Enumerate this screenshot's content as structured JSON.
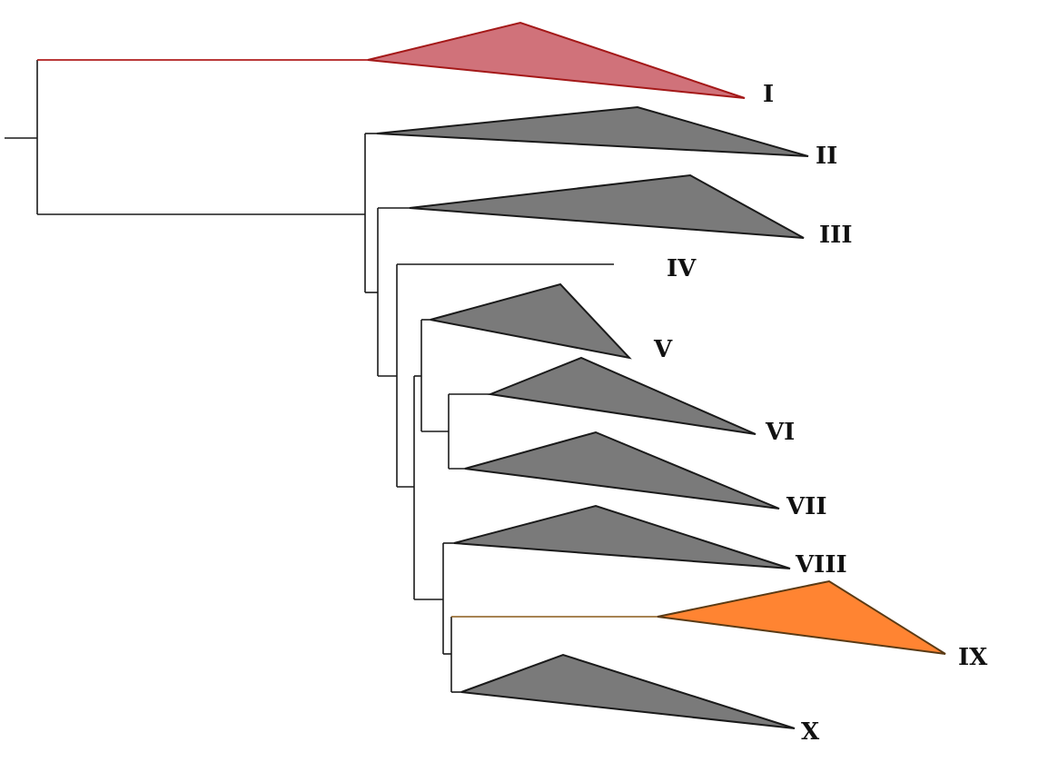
{
  "tree": {
    "clades": [
      {
        "id": "I",
        "label": "I",
        "color": "#d0727a",
        "highlight": "red"
      },
      {
        "id": "II",
        "label": "II",
        "color": "#7a7a7a"
      },
      {
        "id": "III",
        "label": "III",
        "color": "#7a7a7a"
      },
      {
        "id": "IV",
        "label": "IV",
        "color": null,
        "leaf": true
      },
      {
        "id": "V",
        "label": "V",
        "color": "#7a7a7a"
      },
      {
        "id": "VI",
        "label": "VI",
        "color": "#7a7a7a"
      },
      {
        "id": "VII",
        "label": "VII",
        "color": "#7a7a7a"
      },
      {
        "id": "VIII",
        "label": "VIII",
        "color": "#7a7a7a"
      },
      {
        "id": "IX",
        "label": "IX",
        "color": "#ff8432",
        "highlight": "orange"
      },
      {
        "id": "X",
        "label": "X",
        "color": "#7a7a7a"
      }
    ]
  }
}
